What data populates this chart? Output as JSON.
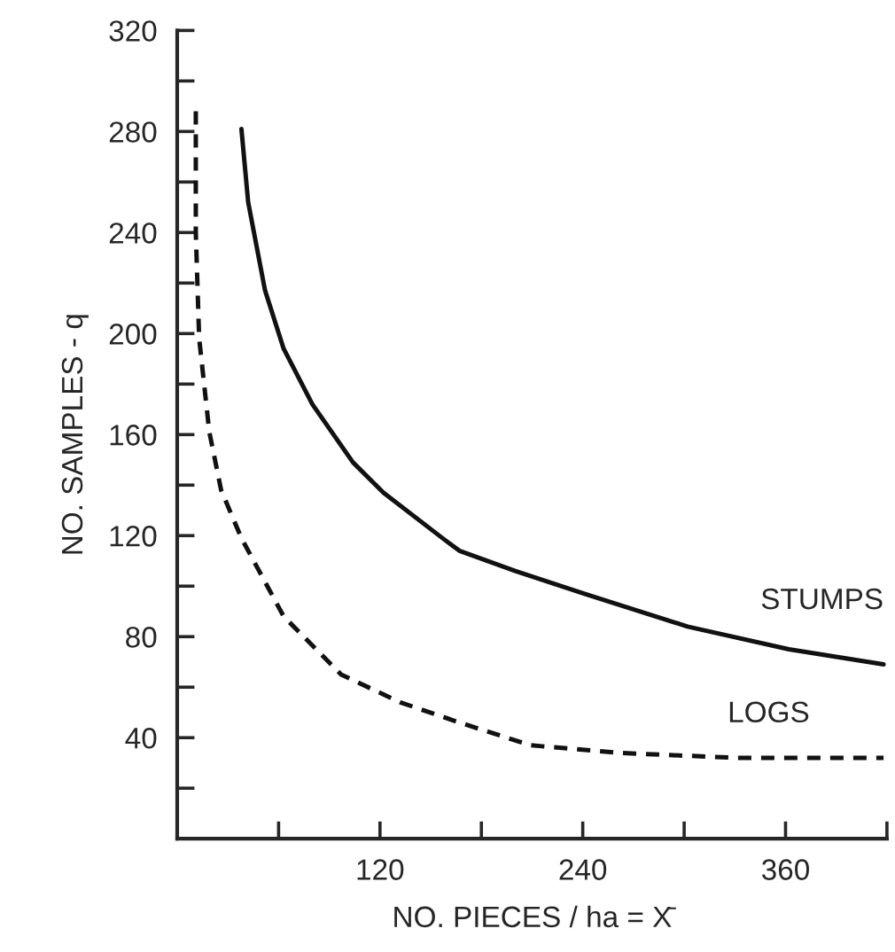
{
  "chart_data": {
    "type": "line",
    "xlabel": "NO. PIECES / ha = X̄",
    "ylabel": "NO. SAMPLES - q",
    "xlim": [
      0,
      420
    ],
    "ylim": [
      0,
      320
    ],
    "xticks": [
      {
        "value": 60,
        "label": null
      },
      120,
      {
        "value": 180,
        "label": null
      },
      240,
      {
        "value": 300,
        "label": null
      },
      360,
      {
        "value": 420,
        "label": null
      }
    ],
    "yticks": [
      {
        "value": 20,
        "label": null
      },
      40,
      {
        "value": 60,
        "label": null
      },
      80,
      {
        "value": 100,
        "label": null
      },
      120,
      {
        "value": 140,
        "label": null
      },
      160,
      {
        "value": 180,
        "label": null
      },
      200,
      {
        "value": 220,
        "label": null
      },
      240,
      {
        "value": 260,
        "label": null
      },
      280,
      {
        "value": 300,
        "label": null
      },
      320
    ],
    "grid": false,
    "legend": false,
    "marker": "none",
    "series": [
      {
        "name": "STUMPS",
        "color": "#111111",
        "line_style": "solid",
        "x": [
          38,
          42,
          52,
          63,
          80,
          104,
          122,
          157,
          167,
          200,
          241,
          302,
          362,
          418
        ],
        "values": [
          281,
          252,
          217,
          194,
          172,
          149,
          137,
          119,
          114,
          106,
          97,
          84,
          75,
          69
        ]
      },
      {
        "name": "LOGS",
        "color": "#111111",
        "line_style": "dashed",
        "x": [
          11,
          11,
          13,
          19,
          26,
          38,
          63,
          97,
          132,
          167,
          209,
          261,
          331,
          418
        ],
        "values": [
          288,
          240,
          198,
          161,
          138,
          119,
          88,
          65,
          54,
          46,
          37,
          34,
          32,
          32
        ]
      }
    ]
  }
}
